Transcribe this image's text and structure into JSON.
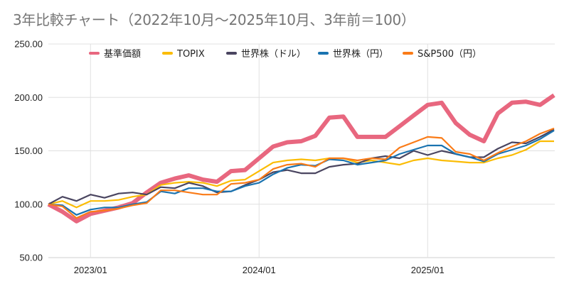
{
  "chart_data": {
    "type": "line",
    "title": "3年比較チャート（2022年10月～2025年10月、3年前＝100）",
    "xlabel": "",
    "ylabel": "",
    "ylim": [
      50,
      250
    ],
    "y_ticks": [
      "250.00",
      "200.00",
      "150.00",
      "100.00",
      "50.00"
    ],
    "y_tick_values": [
      250,
      200,
      150,
      100,
      50
    ],
    "x_tick_labels": [
      "2023/01",
      "2024/01",
      "2025/01"
    ],
    "x_tick_indices": [
      3,
      15,
      27
    ],
    "grid": true,
    "legend_position": "top",
    "x": [
      "2022/10",
      "2022/11",
      "2022/12",
      "2023/01",
      "2023/02",
      "2023/03",
      "2023/04",
      "2023/05",
      "2023/06",
      "2023/07",
      "2023/08",
      "2023/09",
      "2023/10",
      "2023/11",
      "2023/12",
      "2024/01",
      "2024/02",
      "2024/03",
      "2024/04",
      "2024/05",
      "2024/06",
      "2024/07",
      "2024/08",
      "2024/09",
      "2024/10",
      "2024/11",
      "2024/12",
      "2025/01",
      "2025/02",
      "2025/03",
      "2025/04",
      "2025/05",
      "2025/06",
      "2025/07",
      "2025/08",
      "2025/09",
      "2025/10"
    ],
    "series": [
      {
        "name": "基準価額",
        "color": "#e8677f",
        "emphasis": true,
        "values": [
          100,
          93,
          84,
          91,
          94,
          97,
          101,
          111,
          120,
          124,
          127,
          123,
          121,
          131,
          132,
          143,
          154,
          158,
          159,
          164,
          181,
          182,
          163,
          163,
          163,
          173,
          183,
          193,
          195,
          176,
          165,
          159,
          185,
          195,
          196,
          193,
          202
        ]
      },
      {
        "name": "TOPIX",
        "color": "#fbbc04",
        "emphasis": false,
        "values": [
          100,
          103,
          97,
          103,
          103,
          104,
          107,
          109,
          118,
          120,
          121,
          120,
          117,
          122,
          123,
          131,
          139,
          141,
          142,
          141,
          143,
          143,
          139,
          141,
          139,
          137,
          141,
          143,
          141,
          140,
          139,
          139,
          143,
          146,
          151,
          159,
          159
        ]
      },
      {
        "name": "世界株（ドル）",
        "color": "#4a4560",
        "emphasis": false,
        "values": [
          100,
          107,
          103,
          109,
          106,
          110,
          111,
          109,
          116,
          115,
          120,
          117,
          111,
          112,
          118,
          123,
          130,
          132,
          129,
          129,
          135,
          137,
          138,
          143,
          145,
          143,
          150,
          146,
          150,
          147,
          144,
          144,
          152,
          158,
          157,
          163,
          170
        ]
      },
      {
        "name": "世界株（円）",
        "color": "#1a73b0",
        "emphasis": false,
        "values": [
          100,
          99,
          90,
          95,
          97,
          97,
          100,
          102,
          112,
          110,
          115,
          115,
          112,
          112,
          117,
          120,
          128,
          134,
          137,
          136,
          142,
          141,
          137,
          139,
          141,
          147,
          151,
          155,
          155,
          147,
          144,
          140,
          147,
          151,
          155,
          161,
          169
        ]
      },
      {
        "name": "S&P500（円）",
        "color": "#fa7b17",
        "emphasis": false,
        "values": [
          100,
          98,
          87,
          93,
          94,
          96,
          99,
          101,
          113,
          113,
          111,
          109,
          109,
          119,
          120,
          123,
          133,
          137,
          138,
          135,
          143,
          143,
          141,
          143,
          142,
          153,
          158,
          163,
          162,
          149,
          147,
          141,
          148,
          154,
          159,
          166,
          171
        ]
      }
    ]
  }
}
